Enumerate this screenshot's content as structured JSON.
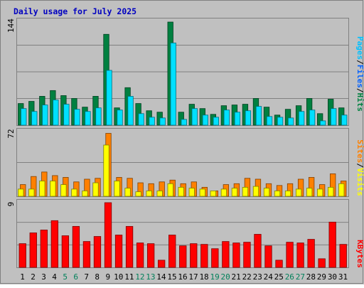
{
  "chart_data": {
    "type": "bar",
    "title": "Daily usage for July 2025",
    "categories": [
      "1",
      "2",
      "3",
      "4",
      "5",
      "6",
      "7",
      "8",
      "9",
      "10",
      "11",
      "12",
      "13",
      "14",
      "15",
      "16",
      "17",
      "18",
      "19",
      "20",
      "21",
      "22",
      "23",
      "24",
      "25",
      "26",
      "27",
      "28",
      "29",
      "30",
      "31"
    ],
    "weekend_days": [
      "5",
      "6",
      "12",
      "13",
      "19",
      "20",
      "26",
      "27"
    ],
    "panels": {
      "top": {
        "ymax_label": "144",
        "ymax": 144,
        "legend": [
          "Pages",
          "/",
          "Files",
          "/",
          "Hits"
        ],
        "series": [
          {
            "name": "Hits",
            "color": "#008040",
            "values": [
              30,
              33,
              40,
              48,
              41,
              37,
              25,
              40,
              126,
              24,
              52,
              30,
              20,
              18,
              143,
              18,
              29,
              23,
              15,
              27,
              28,
              29,
              37,
              25,
              14,
              22,
              27,
              37,
              16,
              36,
              24
            ]
          },
          {
            "name": "Files",
            "color": "#00E0FF",
            "values": [
              23,
              19,
              28,
              35,
              29,
              22,
              19,
              24,
              76,
              21,
              40,
              16,
              11,
              10,
              114,
              8,
              23,
              14,
              11,
              21,
              18,
              20,
              26,
              12,
              11,
              10,
              19,
              21,
              6,
              23,
              14
            ]
          },
          {
            "name": "Pages",
            "color": "#00C0FF",
            "values": [
              0,
              0,
              0,
              0,
              0,
              0,
              0,
              0,
              0,
              0,
              0,
              0,
              0,
              0,
              0,
              0,
              0,
              0,
              0,
              0,
              0,
              0,
              0,
              0,
              0,
              0,
              0,
              0,
              0,
              0,
              0
            ]
          }
        ]
      },
      "middle": {
        "ymax_label": "72",
        "ymax": 72,
        "legend": [
          "Sites",
          "/",
          "Visits"
        ],
        "series": [
          {
            "name": "Visits",
            "color": "#FF8000",
            "values": [
              13,
              22,
              27,
              23,
              21,
              16,
              19,
              20,
              70,
              21,
              20,
              15,
              14,
              16,
              18,
              14,
              16,
              10,
              6,
              13,
              14,
              20,
              19,
              14,
              12,
              14,
              19,
              21,
              13,
              25,
              17
            ]
          },
          {
            "name": "Sites",
            "color": "#FFFF00",
            "values": [
              8,
              8,
              17,
              17,
              13,
              8,
              6,
              15,
              57,
              17,
              9,
              5,
              6,
              6,
              14,
              10,
              9,
              8,
              6,
              8,
              9,
              10,
              11,
              9,
              6,
              6,
              8,
              9,
              8,
              10,
              14
            ]
          }
        ]
      },
      "bottom": {
        "ymax_label": "9",
        "ymax": 9,
        "legend": [
          "KBytes"
        ],
        "series": [
          {
            "name": "KBytes",
            "color": "#FF0000",
            "values": [
              3.3,
              4.8,
              5.2,
              6.5,
              4.4,
              5.7,
              3.6,
              4.3,
              9.0,
              4.5,
              5.7,
              3.4,
              3.3,
              1.0,
              4.5,
              3.0,
              3.3,
              3.2,
              2.6,
              3.6,
              3.4,
              3.5,
              4.6,
              3.0,
              1.0,
              3.5,
              3.4,
              3.9,
              1.2,
              6.3,
              3.2
            ]
          }
        ]
      }
    }
  }
}
